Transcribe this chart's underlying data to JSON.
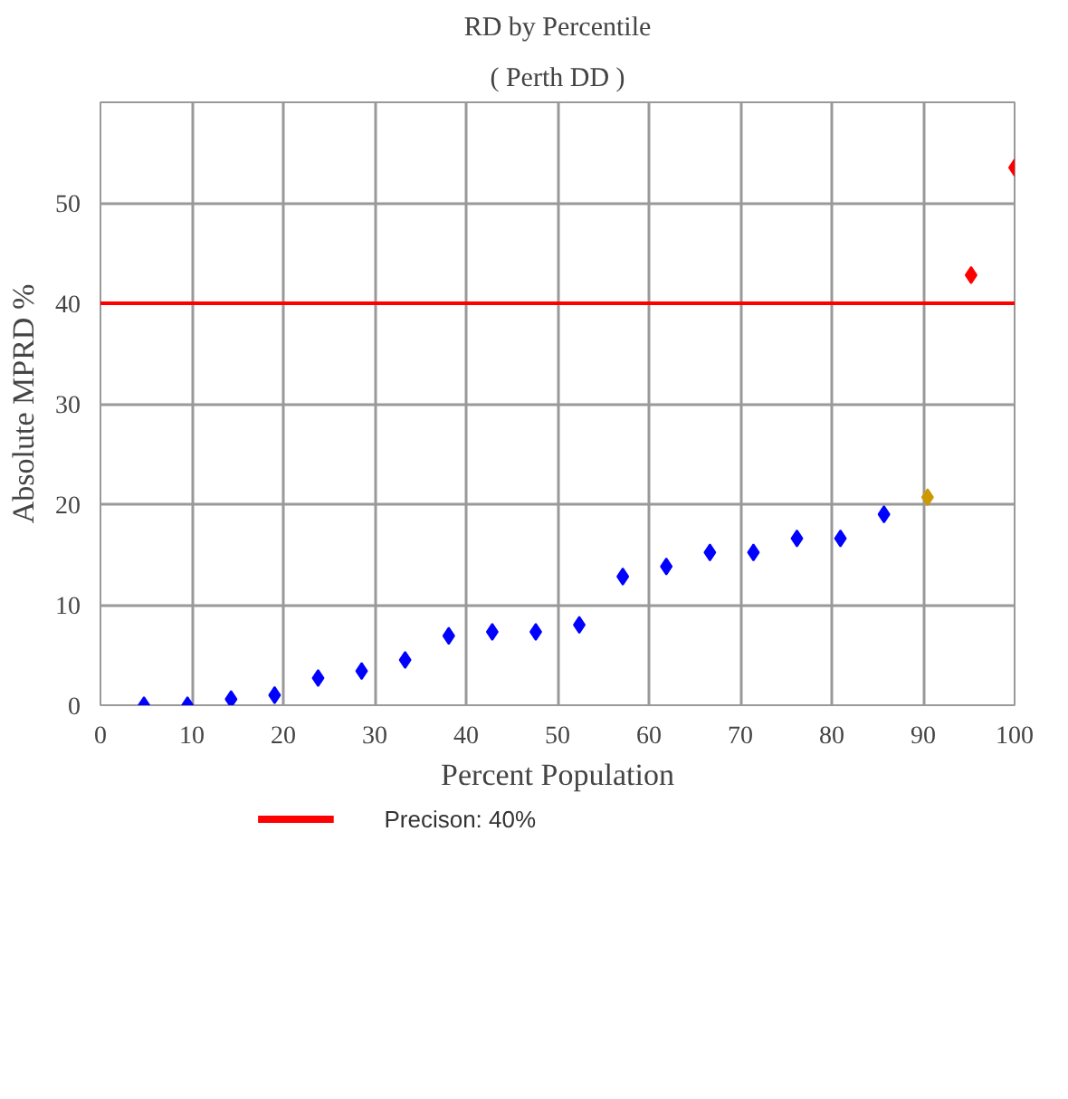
{
  "chart_data": {
    "type": "scatter",
    "title": "RD by Percentile",
    "subtitle": "( Perth DD )",
    "xlabel": "Percent Population",
    "ylabel": "Absolute MPRD %",
    "x": [
      4.76,
      9.52,
      14.29,
      19.05,
      23.81,
      28.57,
      33.33,
      38.1,
      42.86,
      47.62,
      52.38,
      57.14,
      61.9,
      66.67,
      71.43,
      76.19,
      80.95,
      85.71,
      90.48,
      95.24,
      100
    ],
    "values": [
      0,
      0,
      0.6,
      1,
      2.7,
      3.4,
      4.5,
      6.9,
      7.3,
      7.3,
      8,
      12.8,
      13.8,
      15.2,
      15.2,
      16.6,
      16.6,
      19,
      20.7,
      42.8,
      53.5
    ],
    "colors": [
      "#0000ff",
      "#0000ff",
      "#0000ff",
      "#0000ff",
      "#0000ff",
      "#0000ff",
      "#0000ff",
      "#0000ff",
      "#0000ff",
      "#0000ff",
      "#0000ff",
      "#0000ff",
      "#0000ff",
      "#0000ff",
      "#0000ff",
      "#0000ff",
      "#0000ff",
      "#0000ff",
      "#cc9900",
      "#ff0000",
      "#ff0000"
    ],
    "marker": "diamond",
    "xlim": [
      0,
      100
    ],
    "xticks": [
      0,
      10,
      20,
      30,
      40,
      50,
      60,
      70,
      80,
      90,
      100
    ],
    "ylim": [
      0,
      60
    ],
    "yticks": [
      0,
      10,
      20,
      30,
      40,
      50
    ],
    "ref_lines": [
      {
        "axis": "y",
        "value": 40,
        "label": "Precison: 40%",
        "color": "#ff0000"
      }
    ],
    "grid": true,
    "legend": "bottom"
  }
}
